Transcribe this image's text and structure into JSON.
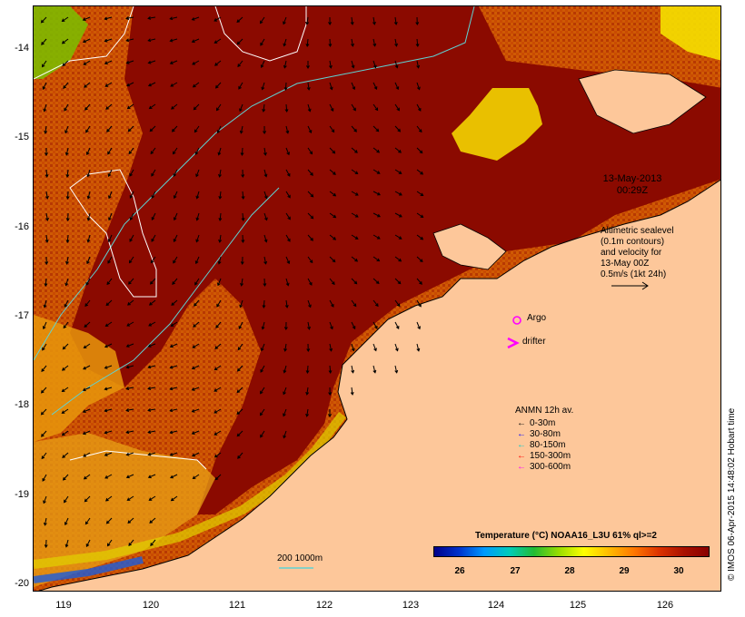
{
  "map": {
    "lat_ticks": [
      "-14",
      "-15",
      "-16",
      "-17",
      "-18",
      "-19",
      "-20"
    ],
    "lon_ticks": [
      "119",
      "120",
      "121",
      "122",
      "123",
      "124",
      "125",
      "126"
    ],
    "lat_range": [
      -20.1,
      -13.5
    ],
    "lon_range": [
      118.65,
      126.65
    ]
  },
  "annotations": {
    "timestamp_lines": [
      "13-May-2013",
      "00:29Z"
    ],
    "altimetry_lines": [
      "Altimetric sealevel",
      "(0.1m contours)",
      "and velocity for",
      "13-May 00Z",
      "0.5m/s (1kt 24h)"
    ],
    "argo_label": "Argo",
    "drifter_label": "drifter",
    "scale_label": "200  1000m"
  },
  "mooring_legend": {
    "title": "ANMN 12h av.",
    "items": [
      {
        "label": "0-30m",
        "color": "#000000"
      },
      {
        "label": "30-80m",
        "color": "#0000ff"
      },
      {
        "label": "80-150m",
        "color": "#00cccc"
      },
      {
        "label": "150-300m",
        "color": "#ff0000"
      },
      {
        "label": "300-600m",
        "color": "#ff00ff"
      }
    ]
  },
  "colorbar": {
    "title": "Temperature (°C) NOAA16_L3U 61% ql>=2",
    "ticks": [
      "26",
      "27",
      "28",
      "29",
      "30"
    ]
  },
  "credit": "© IMOS 06-Apr-2015 14:48:02 Hobart time",
  "colors": {
    "land": "#fdc79a",
    "warm": "#8b0a00",
    "mid": "#cc4a00",
    "cool": "#e89a10",
    "contour": "#5fd3d3",
    "argo": "#ff00ff"
  }
}
